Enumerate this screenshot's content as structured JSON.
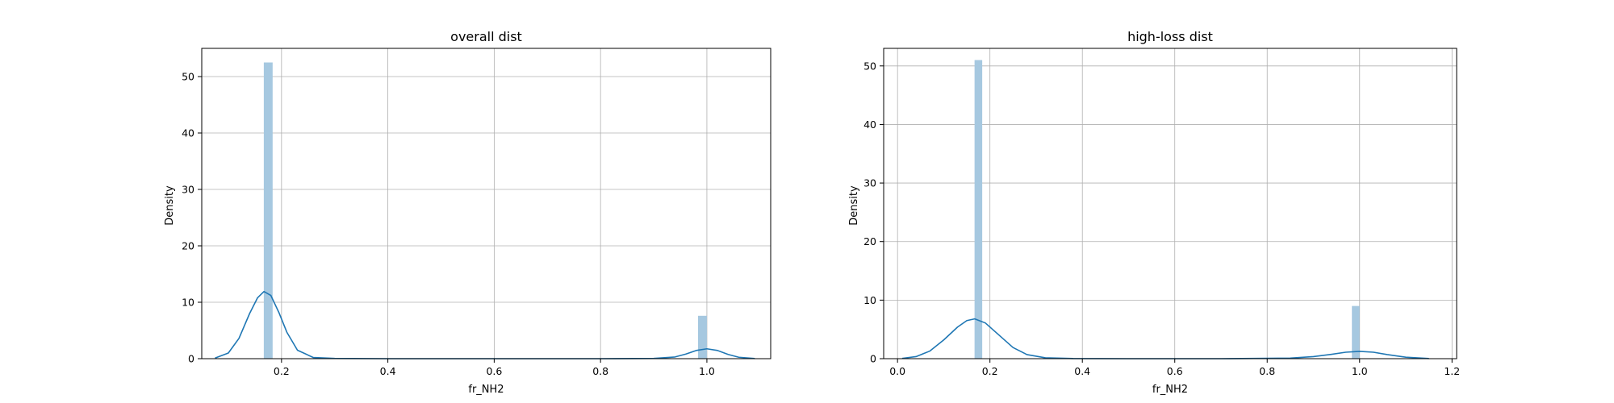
{
  "chart_data": [
    {
      "type": "histogram+kde",
      "title": "overall dist",
      "xlabel": "fr_NH2",
      "ylabel": "Density",
      "xlim": [
        0.05,
        1.12
      ],
      "ylim": [
        0,
        55
      ],
      "xticks": [
        0.2,
        0.4,
        0.6,
        0.8,
        1.0
      ],
      "xtick_labels": [
        "0.2",
        "0.4",
        "0.6",
        "0.8",
        "1.0"
      ],
      "yticks": [
        0,
        10,
        20,
        30,
        40,
        50
      ],
      "ytick_labels": [
        "0",
        "10",
        "20",
        "30",
        "40",
        "50"
      ],
      "grid": true,
      "bar_color": "#a6c8e0",
      "line_color": "#1f77b4",
      "bins": [
        {
          "x0": 0.1667,
          "x1": 0.1833,
          "density": 52.5
        },
        {
          "x0": 0.9833,
          "x1": 1.0,
          "density": 7.6
        }
      ],
      "kde": {
        "x": [
          0.075,
          0.1,
          0.12,
          0.14,
          0.155,
          0.167,
          0.18,
          0.195,
          0.21,
          0.23,
          0.26,
          0.3,
          0.4,
          0.6,
          0.8,
          0.9,
          0.94,
          0.96,
          0.98,
          1.0,
          1.02,
          1.04,
          1.06,
          1.09
        ],
        "y": [
          0.1,
          1.0,
          3.6,
          8.0,
          10.8,
          11.9,
          11.2,
          8.2,
          4.7,
          1.5,
          0.2,
          0.05,
          0,
          0,
          0,
          0.05,
          0.3,
          0.8,
          1.45,
          1.75,
          1.45,
          0.75,
          0.25,
          0.03
        ]
      }
    },
    {
      "type": "histogram+kde",
      "title": "high-loss dist",
      "xlabel": "fr_NH2",
      "ylabel": "Density",
      "xlim": [
        -0.03,
        1.21
      ],
      "ylim": [
        0,
        53
      ],
      "xticks": [
        0.0,
        0.2,
        0.4,
        0.6,
        0.8,
        1.0,
        1.2
      ],
      "xtick_labels": [
        "0.0",
        "0.2",
        "0.4",
        "0.6",
        "0.8",
        "1.0",
        "1.2"
      ],
      "yticks": [
        0,
        10,
        20,
        30,
        40,
        50
      ],
      "ytick_labels": [
        "0",
        "10",
        "20",
        "30",
        "40",
        "50"
      ],
      "grid": true,
      "bar_color": "#a6c8e0",
      "line_color": "#1f77b4",
      "bins": [
        {
          "x0": 0.1667,
          "x1": 0.1833,
          "density": 51.0
        },
        {
          "x0": 0.9833,
          "x1": 1.0,
          "density": 9.0
        }
      ],
      "kde": {
        "x": [
          0.01,
          0.04,
          0.07,
          0.1,
          0.13,
          0.15,
          0.167,
          0.19,
          0.22,
          0.25,
          0.28,
          0.32,
          0.38,
          0.5,
          0.7,
          0.85,
          0.9,
          0.94,
          0.97,
          1.0,
          1.03,
          1.06,
          1.1,
          1.15
        ],
        "y": [
          0.05,
          0.35,
          1.3,
          3.2,
          5.4,
          6.5,
          6.8,
          6.1,
          4.0,
          1.9,
          0.7,
          0.15,
          0.02,
          0,
          0,
          0.1,
          0.35,
          0.75,
          1.1,
          1.25,
          1.1,
          0.7,
          0.25,
          0.03
        ]
      }
    }
  ]
}
